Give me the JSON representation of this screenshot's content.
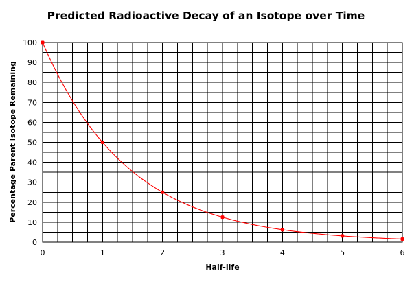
{
  "chart_data": {
    "type": "line",
    "title": "Predicted Radioactive Decay of an Isotope over Time",
    "xlabel": "Half-life",
    "ylabel": "Percentage Parent Isotope Remaining",
    "xlim": [
      0,
      6
    ],
    "ylim": [
      0,
      100
    ],
    "x_ticks": [
      0,
      1,
      2,
      3,
      4,
      5,
      6
    ],
    "y_ticks": [
      0,
      10,
      20,
      30,
      40,
      50,
      60,
      70,
      80,
      90,
      100
    ],
    "grid": true,
    "grid_x_step": 0.25,
    "grid_y_step": 5,
    "legend": false,
    "series": [
      {
        "x": [
          0,
          1,
          2,
          3,
          4,
          5,
          6
        ],
        "values": [
          100,
          50,
          25,
          12.5,
          6.25,
          3.125,
          1.5625
        ],
        "smooth_curve": true,
        "markers": true
      }
    ],
    "colors": {
      "series": "#ff0000",
      "grid": "#000000",
      "text": "#000000"
    }
  }
}
